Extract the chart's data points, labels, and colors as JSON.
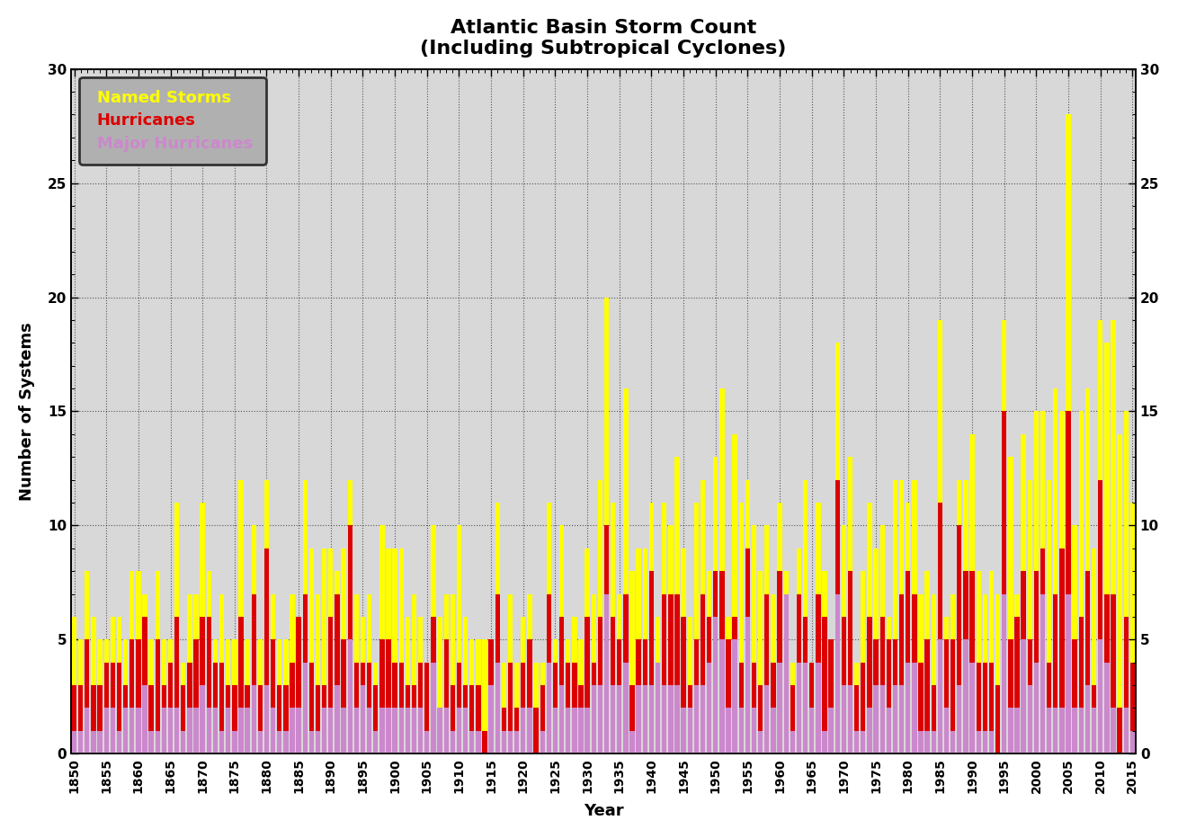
{
  "title_line1": "Atlantic Basin Storm Count",
  "title_line2": "(Including Subtropical Cyclones)",
  "xlabel": "Year",
  "ylabel": "Number of Systems",
  "ylim": [
    0,
    30
  ],
  "yticks": [
    0,
    5,
    10,
    15,
    20,
    25,
    30
  ],
  "plot_bg_color": "#d8d8d8",
  "fig_bg_color": "#ffffff",
  "named_color": "#ffff00",
  "hurricane_color": "#dd0000",
  "major_color": "#cc88cc",
  "legend_bg_color": "#b0b0b0",
  "grid_color": "#000000",
  "years": [
    1850,
    1851,
    1852,
    1853,
    1854,
    1855,
    1856,
    1857,
    1858,
    1859,
    1860,
    1861,
    1862,
    1863,
    1864,
    1865,
    1866,
    1867,
    1868,
    1869,
    1870,
    1871,
    1872,
    1873,
    1874,
    1875,
    1876,
    1877,
    1878,
    1879,
    1880,
    1881,
    1882,
    1883,
    1884,
    1885,
    1886,
    1887,
    1888,
    1889,
    1890,
    1891,
    1892,
    1893,
    1894,
    1895,
    1896,
    1897,
    1898,
    1899,
    1900,
    1901,
    1902,
    1903,
    1904,
    1905,
    1906,
    1907,
    1908,
    1909,
    1910,
    1911,
    1912,
    1913,
    1914,
    1915,
    1916,
    1917,
    1918,
    1919,
    1920,
    1921,
    1922,
    1923,
    1924,
    1925,
    1926,
    1927,
    1928,
    1929,
    1930,
    1931,
    1932,
    1933,
    1934,
    1935,
    1936,
    1937,
    1938,
    1939,
    1940,
    1941,
    1942,
    1943,
    1944,
    1945,
    1946,
    1947,
    1948,
    1949,
    1950,
    1951,
    1952,
    1953,
    1954,
    1955,
    1956,
    1957,
    1958,
    1959,
    1960,
    1961,
    1962,
    1963,
    1964,
    1965,
    1966,
    1967,
    1968,
    1969,
    1970,
    1971,
    1972,
    1973,
    1974,
    1975,
    1976,
    1977,
    1978,
    1979,
    1980,
    1981,
    1982,
    1983,
    1984,
    1985,
    1986,
    1987,
    1988,
    1989,
    1990,
    1991,
    1992,
    1993,
    1994,
    1995,
    1996,
    1997,
    1998,
    1999,
    2000,
    2001,
    2002,
    2003,
    2004,
    2005,
    2006,
    2007,
    2008,
    2009,
    2010,
    2011,
    2012,
    2013,
    2014,
    2015
  ],
  "named_storms": [
    6,
    5,
    8,
    6,
    5,
    5,
    6,
    6,
    5,
    8,
    8,
    7,
    5,
    8,
    5,
    5,
    11,
    4,
    7,
    7,
    11,
    8,
    5,
    7,
    5,
    5,
    12,
    5,
    10,
    5,
    12,
    7,
    5,
    5,
    7,
    6,
    12,
    9,
    7,
    9,
    9,
    8,
    9,
    12,
    7,
    6,
    7,
    4,
    10,
    9,
    9,
    9,
    6,
    7,
    6,
    4,
    10,
    6,
    7,
    7,
    10,
    6,
    5,
    5,
    5,
    5,
    11,
    4,
    7,
    4,
    6,
    7,
    4,
    4,
    11,
    5,
    10,
    5,
    6,
    5,
    9,
    7,
    12,
    20,
    11,
    7,
    16,
    8,
    9,
    9,
    11,
    6,
    11,
    10,
    13,
    9,
    6,
    11,
    12,
    8,
    13,
    16,
    6,
    14,
    11,
    12,
    10,
    8,
    10,
    7,
    11,
    8,
    4,
    9,
    12,
    4,
    11,
    8,
    4,
    18,
    10,
    13,
    4,
    8,
    11,
    9,
    10,
    6,
    12,
    12,
    11,
    12,
    7,
    8,
    7,
    19,
    6,
    7,
    12,
    12,
    14,
    8,
    7,
    8,
    7,
    19,
    13,
    7,
    14,
    12,
    15,
    15,
    12,
    16,
    15,
    28,
    10,
    15,
    16,
    9,
    19,
    18,
    19,
    14,
    15,
    11
  ],
  "hurricanes": [
    3,
    3,
    5,
    3,
    3,
    4,
    4,
    4,
    3,
    5,
    5,
    6,
    3,
    5,
    3,
    4,
    6,
    3,
    4,
    5,
    6,
    6,
    4,
    4,
    3,
    3,
    6,
    3,
    7,
    3,
    9,
    5,
    3,
    3,
    4,
    6,
    7,
    4,
    3,
    3,
    6,
    7,
    5,
    10,
    4,
    4,
    4,
    3,
    5,
    5,
    4,
    4,
    3,
    3,
    4,
    4,
    6,
    2,
    5,
    3,
    4,
    3,
    3,
    3,
    1,
    5,
    7,
    2,
    4,
    2,
    4,
    5,
    2,
    3,
    7,
    4,
    6,
    4,
    4,
    3,
    6,
    4,
    6,
    10,
    6,
    5,
    7,
    3,
    5,
    5,
    8,
    4,
    7,
    7,
    7,
    6,
    3,
    5,
    7,
    6,
    8,
    8,
    5,
    6,
    4,
    9,
    4,
    3,
    7,
    4,
    8,
    7,
    3,
    7,
    6,
    4,
    7,
    6,
    5,
    12,
    6,
    8,
    3,
    4,
    6,
    5,
    6,
    5,
    5,
    7,
    8,
    7,
    4,
    5,
    3,
    11,
    5,
    5,
    10,
    8,
    8,
    4,
    4,
    4,
    3,
    15,
    5,
    6,
    8,
    5,
    8,
    9,
    4,
    7,
    9,
    15,
    5,
    6,
    8,
    3,
    12,
    7,
    7,
    2,
    6,
    4
  ],
  "major_hurricanes": [
    1,
    1,
    2,
    1,
    1,
    2,
    2,
    1,
    2,
    2,
    2,
    3,
    1,
    1,
    2,
    2,
    2,
    1,
    2,
    2,
    3,
    2,
    2,
    1,
    2,
    1,
    2,
    2,
    3,
    1,
    3,
    2,
    1,
    1,
    2,
    2,
    4,
    1,
    1,
    2,
    2,
    3,
    2,
    5,
    2,
    3,
    2,
    1,
    2,
    2,
    2,
    2,
    2,
    2,
    2,
    1,
    4,
    2,
    2,
    1,
    2,
    2,
    1,
    1,
    0,
    3,
    4,
    1,
    1,
    1,
    2,
    2,
    0,
    1,
    4,
    2,
    3,
    2,
    2,
    2,
    2,
    3,
    3,
    7,
    3,
    3,
    4,
    1,
    3,
    3,
    3,
    4,
    3,
    3,
    3,
    2,
    2,
    3,
    3,
    4,
    6,
    5,
    2,
    5,
    2,
    6,
    2,
    1,
    3,
    2,
    4,
    7,
    1,
    4,
    4,
    2,
    4,
    1,
    2,
    7,
    3,
    3,
    1,
    1,
    2,
    3,
    3,
    2,
    3,
    3,
    4,
    4,
    1,
    1,
    1,
    5,
    2,
    1,
    3,
    5,
    4,
    1,
    1,
    1,
    0,
    7,
    2,
    2,
    5,
    3,
    4,
    7,
    2,
    2,
    2,
    7,
    2,
    2,
    3,
    2,
    5,
    4,
    2,
    0,
    2,
    1
  ]
}
